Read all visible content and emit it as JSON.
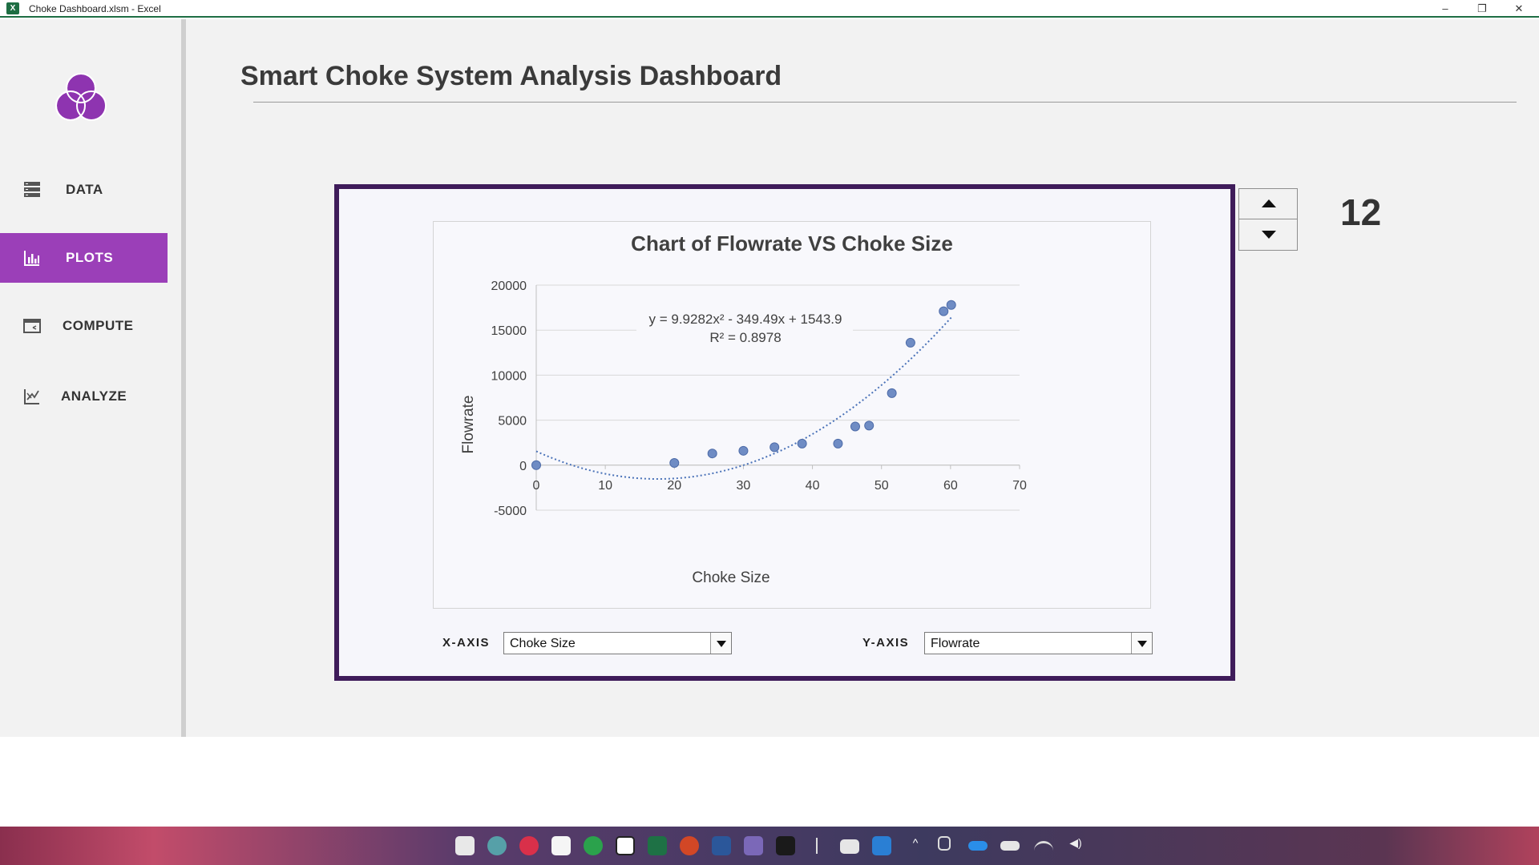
{
  "window": {
    "title": "Choke Dashboard.xlsm - Excel",
    "app_icon_letter": "X",
    "controls": {
      "minimize": "–",
      "restore": "❐",
      "close": "✕"
    }
  },
  "sidebar": {
    "items": [
      {
        "label": "DATA",
        "icon": "server-icon",
        "active": false
      },
      {
        "label": "PLOTS",
        "icon": "bar-chart-icon",
        "active": true
      },
      {
        "label": "COMPUTE",
        "icon": "calculator-screen-icon",
        "active": false
      },
      {
        "label": "ANALYZE",
        "icon": "chart-analyze-icon",
        "active": false
      }
    ],
    "active_color": "#9b3fb8",
    "logo_color": "#8e34b0"
  },
  "header": {
    "title": "Smart Choke System Analysis Dashboard"
  },
  "selectors": {
    "x_label": "X-AXIS",
    "x_value": "Choke Size",
    "y_label": "Y-AXIS",
    "y_value": "Flowrate"
  },
  "spinner": {
    "value": "12"
  },
  "frame_color": "#3f1c5a",
  "chart_data": {
    "type": "scatter",
    "title": "Chart of Flowrate VS Choke Size",
    "xlabel": "Choke Size",
    "ylabel": "Flowrate",
    "xlim": [
      0,
      70
    ],
    "ylim": [
      -5000,
      20000
    ],
    "xticks": [
      0,
      10,
      20,
      30,
      40,
      50,
      60,
      70
    ],
    "yticks": [
      -5000,
      0,
      5000,
      10000,
      15000,
      20000
    ],
    "grid": true,
    "marker_color": "#6f8cc4",
    "points": [
      {
        "x": 0,
        "y": 0
      },
      {
        "x": 20,
        "y": 250
      },
      {
        "x": 25.5,
        "y": 1300
      },
      {
        "x": 30,
        "y": 1600
      },
      {
        "x": 34.5,
        "y": 2000
      },
      {
        "x": 38.5,
        "y": 2400
      },
      {
        "x": 43.7,
        "y": 2400
      },
      {
        "x": 46.2,
        "y": 4300
      },
      {
        "x": 48.2,
        "y": 4400
      },
      {
        "x": 51.5,
        "y": 8000
      },
      {
        "x": 54.2,
        "y": 13600
      },
      {
        "x": 59,
        "y": 17100
      },
      {
        "x": 60.1,
        "y": 17800
      }
    ],
    "trendline": {
      "type": "polynomial",
      "order": 2,
      "coefficients": [
        9.9282,
        -349.49,
        1543.9
      ],
      "x_range": [
        0,
        60.1
      ],
      "equation": "y = 9.9282x² - 349.49x + 1543.9",
      "r2_label": "R² = 0.8978",
      "color": "#4a72b8"
    }
  }
}
